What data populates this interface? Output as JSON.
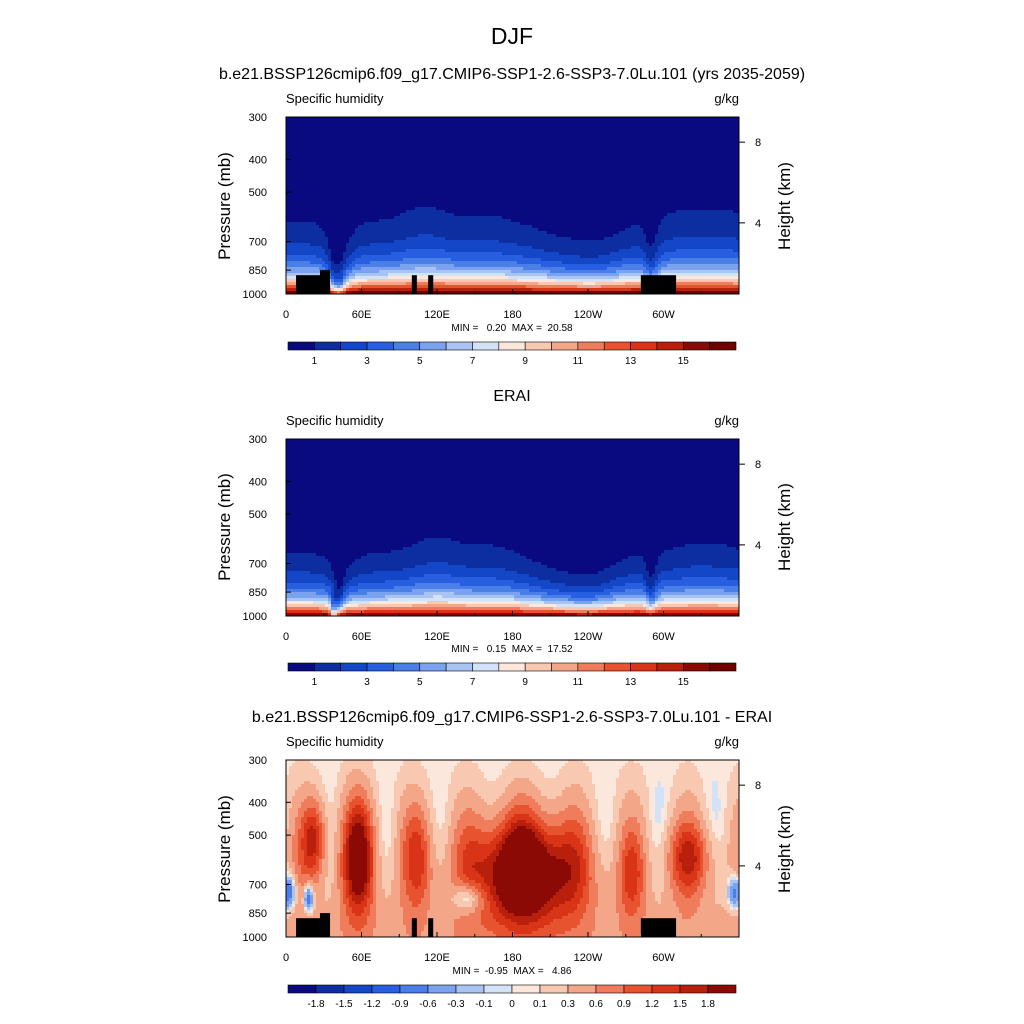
{
  "figure": {
    "title": "DJF"
  },
  "colors": {
    "abs_levels": [
      "#0a0a80",
      "#0d2ea0",
      "#1446c8",
      "#285ee0",
      "#4a7fe8",
      "#7aa2ee",
      "#a9c4f2",
      "#d3e3f7",
      "#fbe7dc",
      "#f8c9b0",
      "#f4a689",
      "#ef7d5c",
      "#e8532f",
      "#d93418",
      "#b8200c",
      "#8c0a05",
      "#6e0000"
    ],
    "diff_levels": [
      "#0a0a80",
      "#0d2ea0",
      "#1446c8",
      "#285ee0",
      "#4a7fe8",
      "#7aa2ee",
      "#a9c4f2",
      "#d3e3f7",
      "#fbe7dc",
      "#f8c9b0",
      "#f4a689",
      "#ef7d5c",
      "#e8532f",
      "#d93418",
      "#b8200c",
      "#8c0a05"
    ],
    "terrain": "#000000"
  },
  "chart_data": [
    {
      "type": "heatmap",
      "id": "model",
      "title": "b.e21.BSSP126cmip6.f09_g17.CMIP6-SSP1-2.6-SSP3-7.0Lu.101 (yrs 2035-2059)",
      "left_label": "Specific humidity",
      "right_label": "g/kg",
      "ylabel": "Pressure (mb)",
      "y2label": "Height (km)",
      "xticks": [
        "0",
        "60E",
        "120E",
        "180",
        "120W",
        "60W"
      ],
      "x_tick_values": [
        0,
        60,
        120,
        180,
        240,
        300
      ],
      "xlim": [
        0,
        360
      ],
      "yticks": [
        "300",
        "400",
        "500",
        "700",
        "850",
        "1000"
      ],
      "y_tick_values": [
        300,
        400,
        500,
        700,
        850,
        1000
      ],
      "ylim": [
        1000,
        300
      ],
      "y_scale": "log",
      "y2ticks": [
        "8",
        "4"
      ],
      "y2_tick_values": [
        8,
        4
      ],
      "stats": "MIN =   0.20  MAX =  20.58",
      "min": 0.2,
      "max": 20.58,
      "colorbar_labels": [
        "1",
        "3",
        "5",
        "7",
        "9",
        "11",
        "13",
        "15"
      ],
      "colorbar_levels": [
        1,
        2,
        3,
        4,
        5,
        6,
        7,
        8,
        9,
        10,
        11,
        12,
        13,
        14,
        15,
        16
      ],
      "field": "model",
      "terrain": true
    },
    {
      "type": "heatmap",
      "id": "obs",
      "title": "ERAI",
      "left_label": "Specific humidity",
      "right_label": "g/kg",
      "ylabel": "Pressure (mb)",
      "y2label": "Height (km)",
      "xticks": [
        "0",
        "60E",
        "120E",
        "180",
        "120W",
        "60W"
      ],
      "x_tick_values": [
        0,
        60,
        120,
        180,
        240,
        300
      ],
      "xlim": [
        0,
        360
      ],
      "yticks": [
        "300",
        "400",
        "500",
        "700",
        "850",
        "1000"
      ],
      "y_tick_values": [
        300,
        400,
        500,
        700,
        850,
        1000
      ],
      "ylim": [
        1000,
        300
      ],
      "y_scale": "log",
      "y2ticks": [
        "8",
        "4"
      ],
      "y2_tick_values": [
        8,
        4
      ],
      "stats": "MIN =   0.15  MAX =  17.52",
      "min": 0.15,
      "max": 17.52,
      "colorbar_labels": [
        "1",
        "3",
        "5",
        "7",
        "9",
        "11",
        "13",
        "15"
      ],
      "colorbar_levels": [
        1,
        2,
        3,
        4,
        5,
        6,
        7,
        8,
        9,
        10,
        11,
        12,
        13,
        14,
        15,
        16
      ],
      "field": "obs",
      "terrain": false
    },
    {
      "type": "heatmap",
      "id": "diff",
      "title": "b.e21.BSSP126cmip6.f09_g17.CMIP6-SSP1-2.6-SSP3-7.0Lu.101 - ERAI",
      "left_label": "Specific humidity",
      "right_label": "g/kg",
      "ylabel": "Pressure (mb)",
      "y2label": "Height (km)",
      "xticks": [
        "0",
        "60E",
        "120E",
        "180",
        "120W",
        "60W"
      ],
      "x_tick_values": [
        0,
        60,
        120,
        180,
        240,
        300
      ],
      "xlim": [
        0,
        360
      ],
      "yticks": [
        "300",
        "400",
        "500",
        "700",
        "850",
        "1000"
      ],
      "y_tick_values": [
        300,
        400,
        500,
        700,
        850,
        1000
      ],
      "ylim": [
        1000,
        300
      ],
      "y_scale": "log",
      "y2ticks": [
        "8",
        "4"
      ],
      "y2_tick_values": [
        8,
        4
      ],
      "stats": "MIN =  -0.95  MAX =   4.86",
      "min": -0.95,
      "max": 4.86,
      "colorbar_labels": [
        "-1.8",
        "-1.5",
        "-1.2",
        "-0.9",
        "-0.6",
        "-0.3",
        "-0.1",
        "0",
        "0.1",
        "0.3",
        "0.6",
        "0.9",
        "1.2",
        "1.5",
        "1.8"
      ],
      "colorbar_levels": [
        -1.8,
        -1.5,
        -1.2,
        -0.9,
        -0.6,
        -0.3,
        -0.1,
        0,
        0.1,
        0.3,
        0.6,
        0.9,
        1.2,
        1.5,
        1.8
      ],
      "field": "diff",
      "terrain": true
    }
  ]
}
